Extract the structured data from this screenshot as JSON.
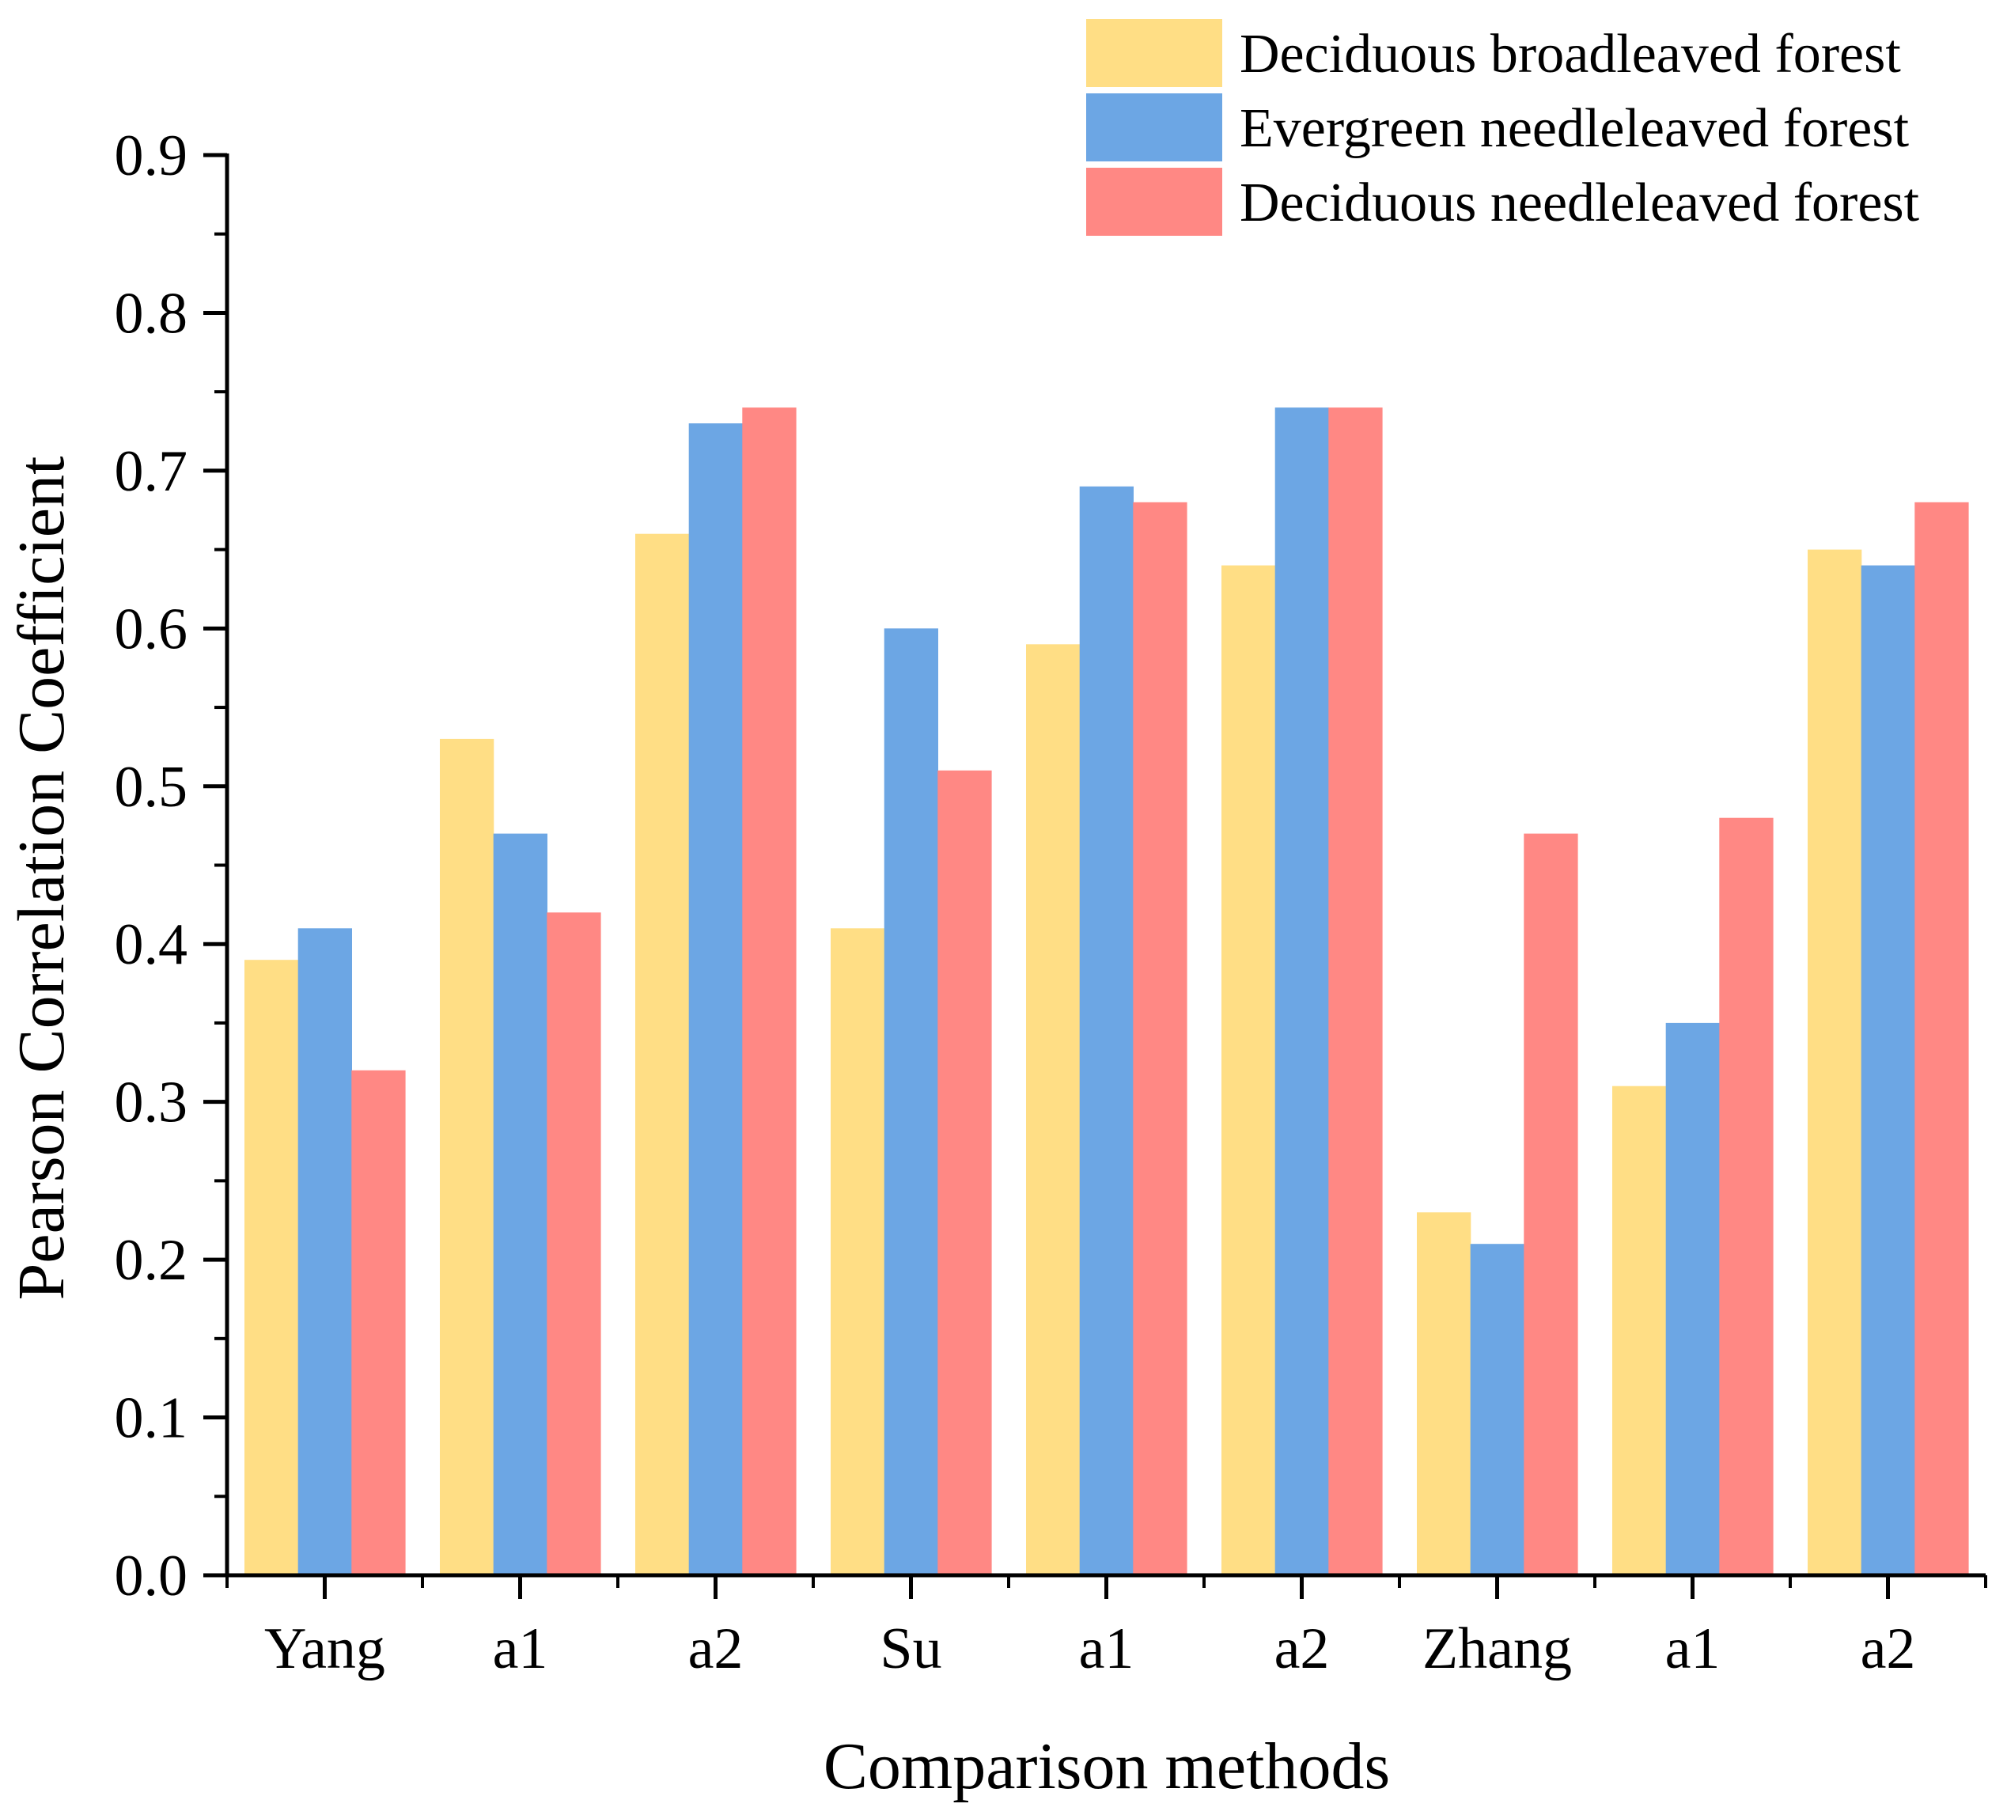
{
  "chart_data": {
    "type": "bar",
    "title": "",
    "xlabel": "Comparison methods",
    "ylabel": "Pearson Correlation Coefficient",
    "categories": [
      "Yang",
      "a1",
      "a2",
      "Su",
      "a1",
      "a2",
      "Zhang",
      "a1",
      "a2"
    ],
    "ylim": [
      0,
      0.9
    ],
    "yticks": [
      "0.0",
      "0.1",
      "0.2",
      "0.3",
      "0.4",
      "0.5",
      "0.6",
      "0.7",
      "0.8",
      "0.9"
    ],
    "grid": false,
    "legend_position": "top-right",
    "series": [
      {
        "name": "Deciduous broadleaved forest",
        "color": "#FFDE85",
        "values": [
          0.39,
          0.53,
          0.66,
          0.41,
          0.59,
          0.64,
          0.23,
          0.31,
          0.65
        ]
      },
      {
        "name": "Evergreen needleleaved forest",
        "color": "#6CA6E4",
        "values": [
          0.41,
          0.47,
          0.73,
          0.6,
          0.69,
          0.74,
          0.21,
          0.35,
          0.64
        ]
      },
      {
        "name": "Deciduous needleleaved forest",
        "color": "#FF8884",
        "values": [
          0.32,
          0.42,
          0.74,
          0.51,
          0.68,
          0.74,
          0.47,
          0.48,
          0.68
        ]
      }
    ]
  }
}
